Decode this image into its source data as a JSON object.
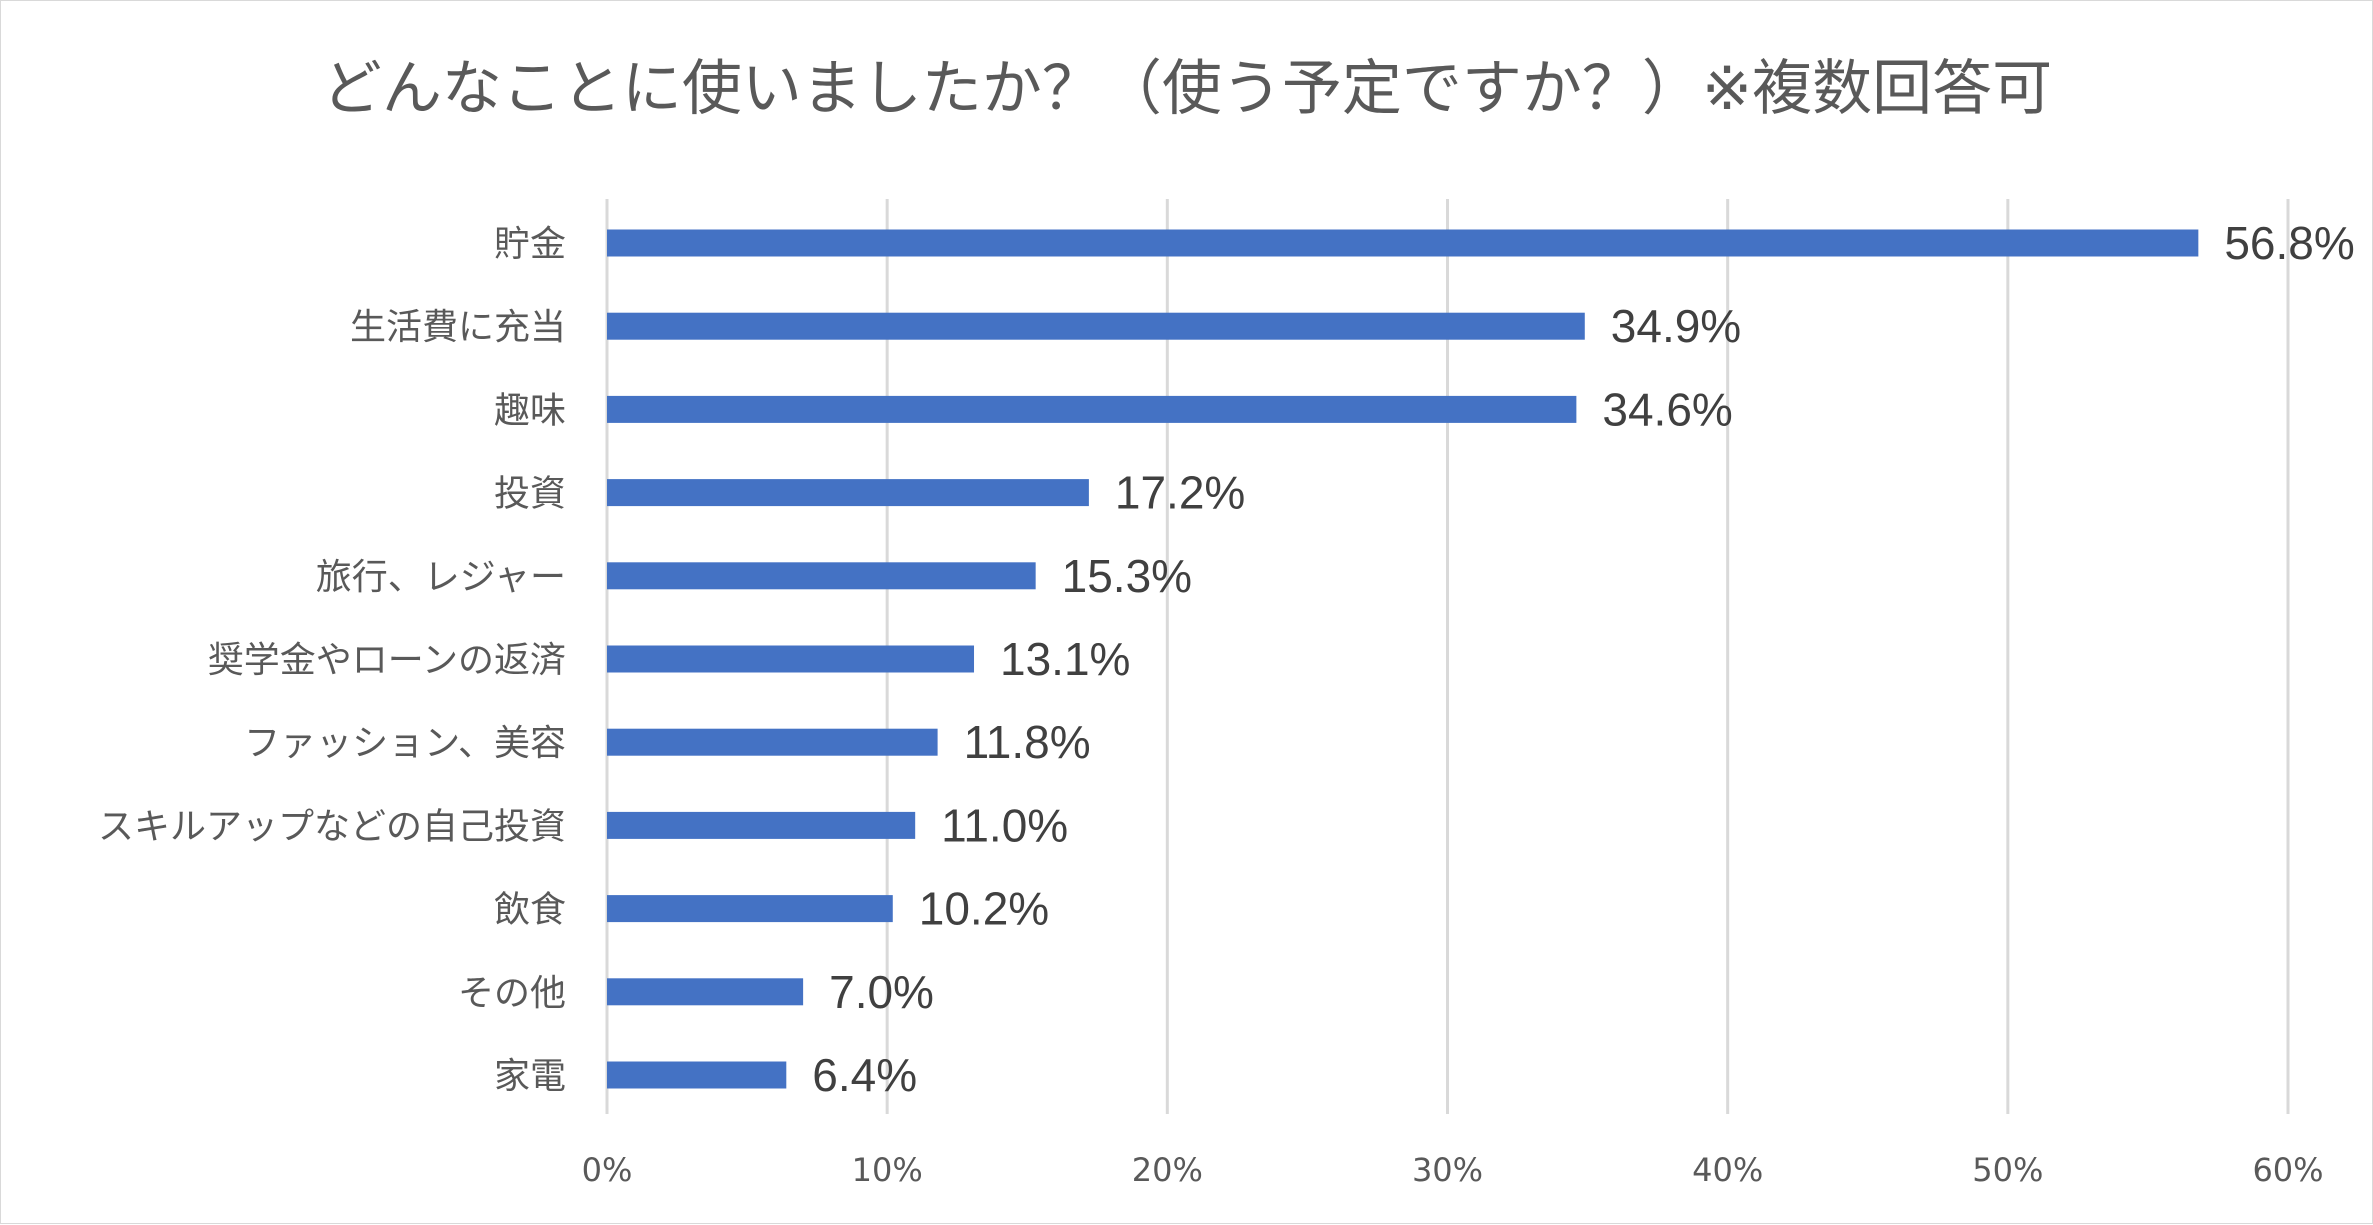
{
  "chart_data": {
    "type": "bar",
    "orientation": "horizontal",
    "title": "どんなことに使いましたか？（使う予定ですか？）※複数回答可",
    "categories": [
      "貯金",
      "生活費に充当",
      "趣味",
      "投資",
      "旅行、レジャー",
      "奨学金やローンの返済",
      "ファッション、美容",
      "スキルアップなどの自己投資",
      "飲食",
      "その他",
      "家電"
    ],
    "values": [
      56.8,
      34.9,
      34.6,
      17.2,
      15.3,
      13.1,
      11.8,
      11.0,
      10.2,
      7.0,
      6.4
    ],
    "data_labels": [
      "56.8%",
      "34.9%",
      "34.6%",
      "17.2%",
      "15.3%",
      "13.1%",
      "11.8%",
      "11.0%",
      "10.2%",
      "7.0%",
      "6.4%"
    ],
    "xlim": [
      0,
      60
    ],
    "x_ticks": [
      0,
      10,
      20,
      30,
      40,
      50,
      60
    ],
    "x_tick_labels": [
      "0%",
      "10%",
      "20%",
      "30%",
      "40%",
      "50%",
      "60%"
    ],
    "xlabel": "",
    "ylabel": "",
    "grid": "vertical",
    "legend": "none",
    "bar_color": "#4472c4"
  }
}
